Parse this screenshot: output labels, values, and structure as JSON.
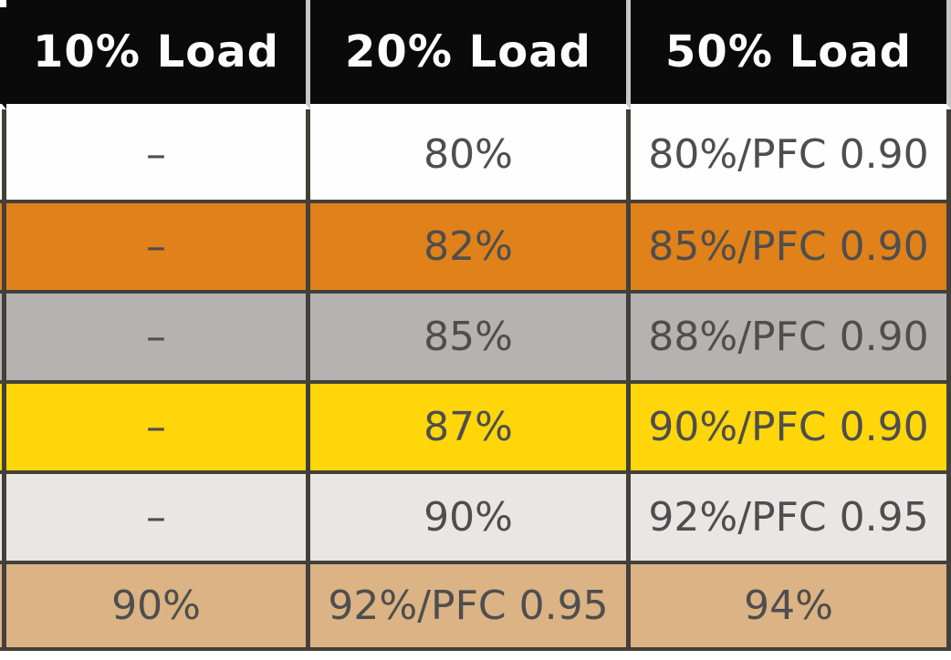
{
  "colors": {
    "page_bg": "#FFFFFF",
    "header_bg": "#0A0A0A",
    "header_text": "#FDFDFD",
    "header_divider": "#C6C6C6",
    "border_dark": "#43403A",
    "cell_text": "#4E4E4E"
  },
  "chart_data": {
    "type": "table",
    "columns": [
      "10% Load",
      "20% Load",
      "50% Load"
    ],
    "rows": [
      {
        "row_color": "#FEFEFE",
        "values": [
          "–",
          "80%",
          "80%/PFC 0.90"
        ]
      },
      {
        "row_color": "#E08119",
        "values": [
          "–",
          "82%",
          "85%/PFC 0.90"
        ]
      },
      {
        "row_color": "#B4B3B1",
        "values": [
          "–",
          "85%",
          "88%/PFC 0.90"
        ]
      },
      {
        "row_color": "#FFD60A",
        "values": [
          "–",
          "87%",
          "90%/PFC 0.90"
        ]
      },
      {
        "row_color": "#E9E7E4",
        "values": [
          "–",
          "90%",
          "92%/PFC 0.95"
        ]
      },
      {
        "row_color": "#DBB384",
        "values": [
          "90%",
          "92%/PFC 0.95",
          "94%"
        ]
      }
    ],
    "layout": {
      "header_position": "top",
      "grid": "dark borders between cells, light dividers between header cells",
      "clipped": "leftmost column and right side of the 50% Load column are cut off by the screenshot edges"
    }
  }
}
